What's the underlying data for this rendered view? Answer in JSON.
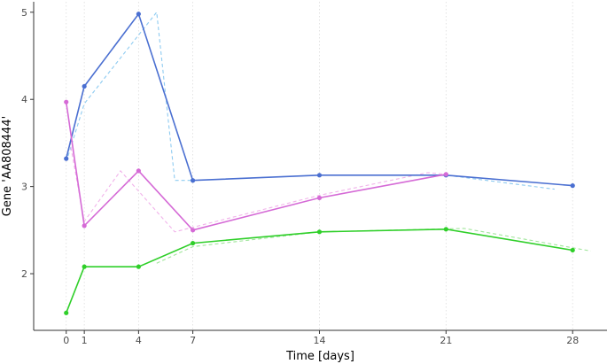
{
  "chart_data": {
    "type": "line",
    "title": "",
    "xlabel": "Time [days]",
    "ylabel": "Gene 'AA808444'",
    "xlim": [
      -1.8,
      29.9
    ],
    "ylim": [
      1.35,
      5.12
    ],
    "x_ticks": [
      0,
      1,
      4,
      7,
      14,
      21,
      28
    ],
    "y_ticks": [
      2,
      3,
      4,
      5
    ],
    "grid": {
      "vertical": true,
      "horizontal": false
    },
    "legend": "none",
    "series": [
      {
        "color": "#4a6fd1",
        "style": "solid",
        "markers": true,
        "x": [
          0,
          1,
          4,
          7,
          14,
          21,
          28
        ],
        "y": [
          3.32,
          4.15,
          4.98,
          3.07,
          3.13,
          3.13,
          3.01
        ]
      },
      {
        "color": "#8ecbf1",
        "style": "dashed",
        "markers": false,
        "x": [
          0.1,
          1,
          5,
          6,
          7,
          14,
          21,
          27
        ],
        "y": [
          3.35,
          3.95,
          5.0,
          3.07,
          3.07,
          3.13,
          3.13,
          2.97
        ]
      },
      {
        "color": "#d56ad6",
        "style": "solid",
        "markers": true,
        "x": [
          0,
          1,
          4,
          7,
          14,
          21
        ],
        "y": [
          3.97,
          2.55,
          3.18,
          2.5,
          2.87,
          3.14
        ]
      },
      {
        "color": "#f1b2ea",
        "style": "dashed",
        "markers": false,
        "x": [
          0.2,
          1,
          3,
          6,
          14,
          20,
          21
        ],
        "y": [
          3.52,
          2.6,
          3.18,
          2.48,
          2.9,
          3.16,
          3.14
        ]
      },
      {
        "color": "#2fcf29",
        "style": "solid",
        "markers": true,
        "x": [
          0,
          1,
          4,
          7,
          14,
          21,
          28
        ],
        "y": [
          1.55,
          2.08,
          2.08,
          2.35,
          2.48,
          2.51,
          2.27
        ]
      },
      {
        "color": "#9fe69a",
        "style": "dashed",
        "markers": false,
        "x": [
          5,
          7,
          14,
          22,
          29
        ],
        "y": [
          2.12,
          2.31,
          2.48,
          2.52,
          2.26
        ]
      }
    ]
  }
}
